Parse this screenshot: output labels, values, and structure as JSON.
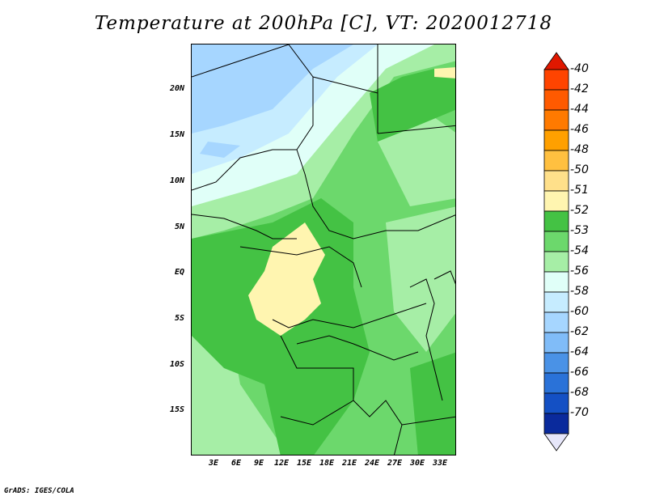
{
  "title": "Temperature at 200hPa [C], VT: 2020012718",
  "credit": "GrADS: IGES/COLA",
  "lat_ticks": [
    "20N",
    "15N",
    "10N",
    "5N",
    "EQ",
    "5S",
    "10S",
    "15S"
  ],
  "lon_ticks": [
    "3E",
    "6E",
    "9E",
    "12E",
    "15E",
    "18E",
    "21E",
    "24E",
    "27E",
    "30E",
    "33E"
  ],
  "legend": [
    {
      "label": "-40",
      "color": "#ff4400"
    },
    {
      "label": "-42",
      "color": "#ff5a00"
    },
    {
      "label": "-44",
      "color": "#ff7a00"
    },
    {
      "label": "-46",
      "color": "#ffa000"
    },
    {
      "label": "-48",
      "color": "#ffc040"
    },
    {
      "label": "-50",
      "color": "#ffe08a"
    },
    {
      "label": "-51",
      "color": "#fff5b0"
    },
    {
      "label": "-52",
      "color": "#44c244"
    },
    {
      "label": "-53",
      "color": "#6cd86c"
    },
    {
      "label": "-54",
      "color": "#a6eea6"
    },
    {
      "label": "-56",
      "color": "#e0fff8"
    },
    {
      "label": "-58",
      "color": "#c6ecff"
    },
    {
      "label": "-60",
      "color": "#a6d6ff"
    },
    {
      "label": "-62",
      "color": "#80bcf8"
    },
    {
      "label": "-64",
      "color": "#4a92e6"
    },
    {
      "label": "-66",
      "color": "#2a72d8"
    },
    {
      "label": "-68",
      "color": "#1450c4"
    },
    {
      "label": "-70",
      "color": "#0a2a9c"
    }
  ],
  "legend_top_color": "#e01800",
  "legend_bottom_color": "#e6e6fa"
}
